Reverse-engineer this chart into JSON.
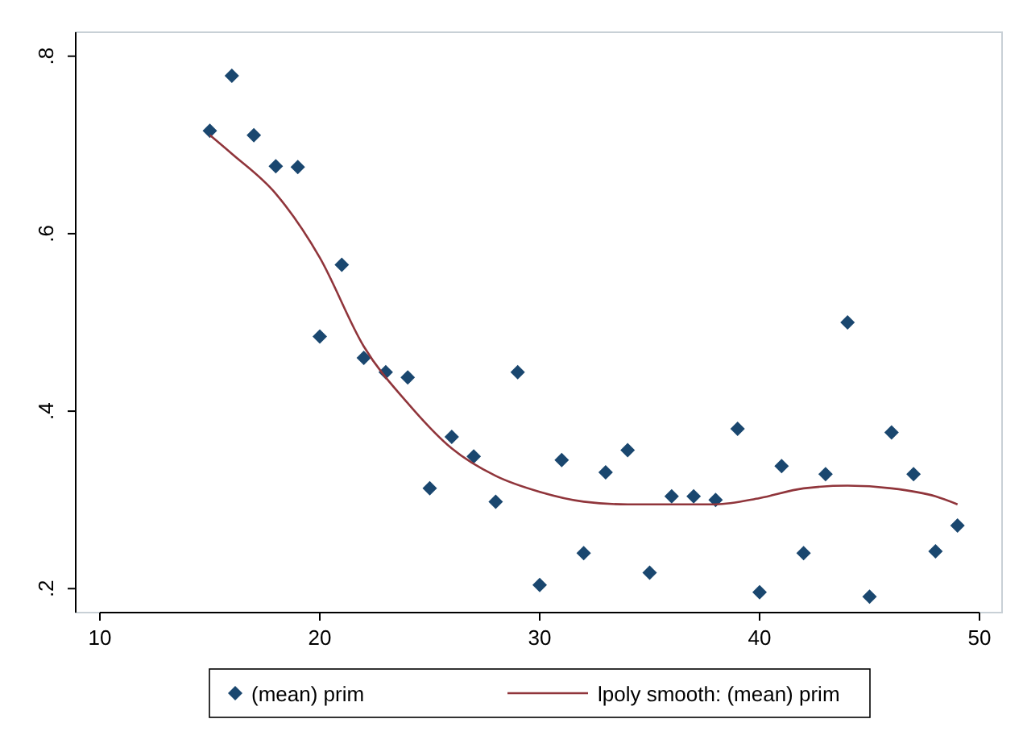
{
  "chart_data": {
    "type": "scatter",
    "x": [
      15,
      16,
      17,
      18,
      19,
      20,
      21,
      22,
      23,
      24,
      25,
      26,
      27,
      28,
      29,
      30,
      31,
      32,
      33,
      34,
      35,
      36,
      37,
      38,
      39,
      40,
      41,
      42,
      43,
      44,
      45,
      46,
      47,
      48,
      49
    ],
    "series": [
      {
        "name": "(mean) prim",
        "color": "#1a476f",
        "marker": "diamond",
        "values": [
          0.716,
          0.778,
          0.711,
          0.676,
          0.675,
          0.484,
          0.565,
          0.46,
          0.444,
          0.438,
          0.313,
          0.371,
          0.349,
          0.298,
          0.444,
          0.204,
          0.345,
          0.24,
          0.331,
          0.356,
          0.218,
          0.304,
          0.304,
          0.3,
          0.38,
          0.196,
          0.338,
          0.24,
          0.329,
          0.5,
          0.191,
          0.376,
          0.329,
          0.242,
          0.271
        ]
      },
      {
        "name": "lpoly smooth: (mean) prim",
        "type": "line",
        "color": "#90353b",
        "marker": "none",
        "x": [
          15,
          16,
          18,
          20,
          22,
          24,
          26,
          28,
          30,
          32,
          34,
          36,
          38,
          40,
          42,
          44,
          46,
          48,
          49
        ],
        "values": [
          0.711,
          0.69,
          0.645,
          0.573,
          0.473,
          0.409,
          0.358,
          0.327,
          0.309,
          0.298,
          0.295,
          0.295,
          0.295,
          0.302,
          0.313,
          0.316,
          0.313,
          0.304,
          0.295
        ]
      }
    ],
    "xlim": [
      10,
      50
    ],
    "xticks": [
      10,
      20,
      30,
      40,
      50
    ],
    "ylim": [
      0.173,
      0.827
    ],
    "yticks": [
      {
        "value": 0.2,
        "label": ".2"
      },
      {
        "value": 0.4,
        "label": ".4"
      },
      {
        "value": 0.6,
        "label": ".6"
      },
      {
        "value": 0.8,
        "label": ".8"
      }
    ],
    "grid": false,
    "legend": "bottom"
  }
}
